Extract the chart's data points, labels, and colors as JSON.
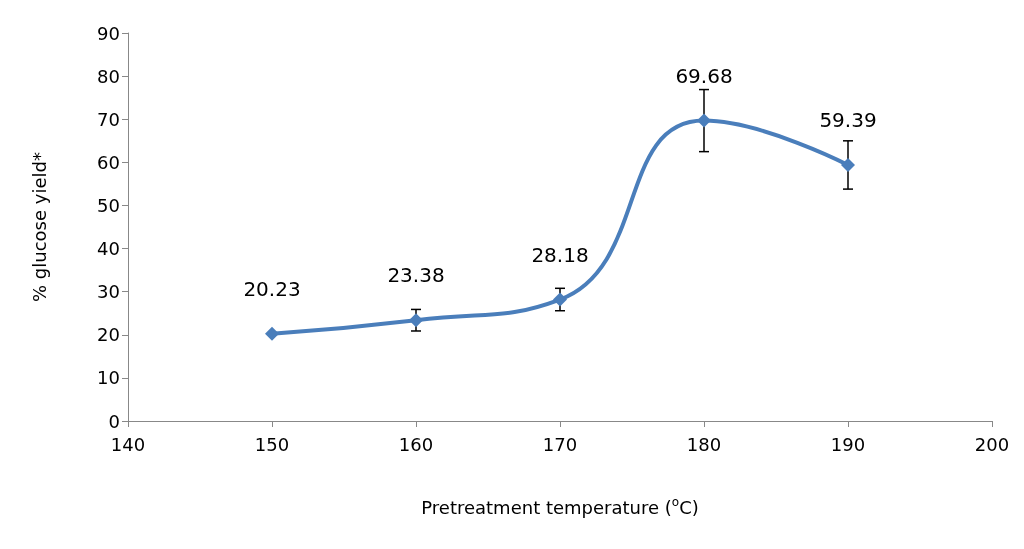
{
  "chart_data": {
    "type": "line",
    "xlabel": "Pretreatment temperature ($^{o}$C)",
    "ylabel": "% glucose yield*",
    "x": [
      150,
      160,
      170,
      180,
      190
    ],
    "series": [
      {
        "color": "#4a7ebb",
        "values": [
          20.23,
          23.38,
          28.18,
          69.68,
          59.39
        ],
        "errors": [
          null,
          2.5,
          2.6,
          7.2,
          5.6
        ]
      }
    ],
    "xlim": [
      140,
      200
    ],
    "xticks": [
      140,
      150,
      160,
      170,
      180,
      190,
      200
    ],
    "ylim": [
      0,
      90
    ],
    "yticks": [
      0,
      10,
      20,
      30,
      40,
      50,
      60,
      70,
      80,
      90
    ],
    "grid": false,
    "marker": "diamond",
    "line_style": "solid",
    "data_labels": true
  }
}
